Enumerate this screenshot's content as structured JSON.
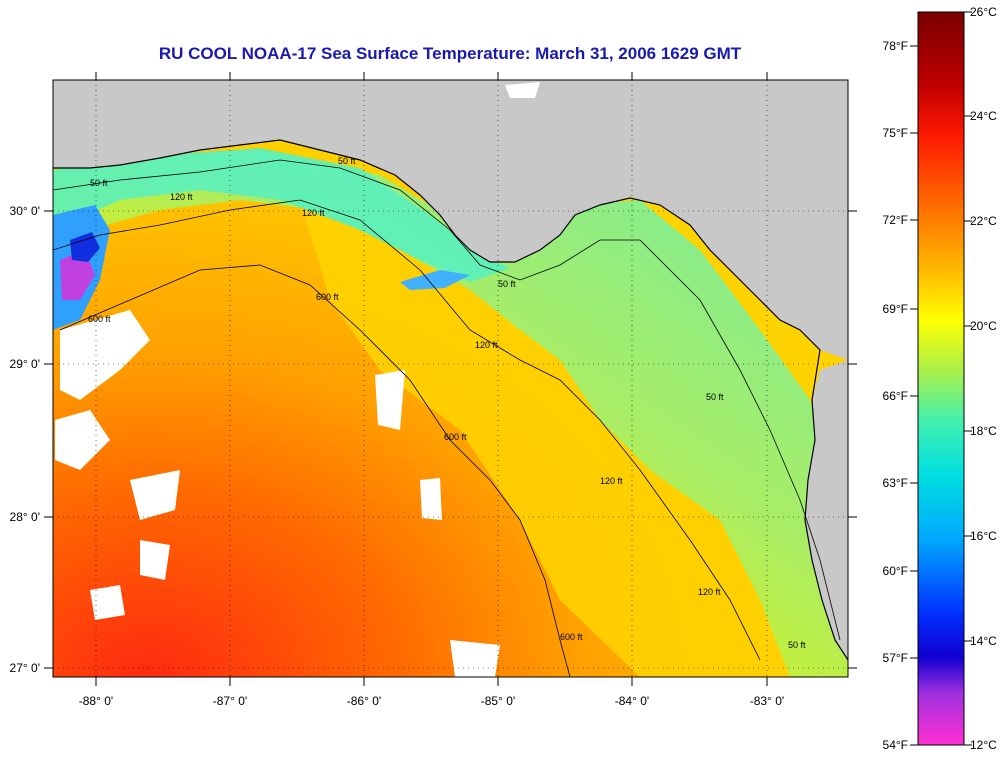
{
  "title": "RU COOL  NOAA-17  Sea Surface Temperature:  March 31, 2006 1629 GMT",
  "axes": {
    "lon_labels": [
      "-88° 0'",
      "-87° 0'",
      "-86° 0'",
      "-85° 0'",
      "-84° 0'",
      "-83° 0'"
    ],
    "lat_labels": [
      "30° 0'",
      "29° 0'",
      "28° 0'",
      "27° 0'"
    ]
  },
  "colorbar": {
    "fahrenheit_labels": [
      "78°F",
      "75°F",
      "72°F",
      "69°F",
      "66°F",
      "63°F",
      "60°F",
      "57°F",
      "54°F"
    ],
    "celsius_labels": [
      "26°C",
      "24°C",
      "22°C",
      "20°C",
      "18°C",
      "16°C",
      "14°C",
      "12°C"
    ],
    "colors": [
      "#7a0000",
      "#c00000",
      "#ff2a00",
      "#ff7a00",
      "#ffc000",
      "#ffff00",
      "#a8f04a",
      "#40f0b0",
      "#00e0e0",
      "#00a8ff",
      "#0040ff",
      "#1000d0",
      "#a030e0",
      "#ff30d0"
    ]
  },
  "contour_labels": [
    "50 ft",
    "120 ft",
    "600 ft",
    "50 ft",
    "120 ft",
    "600 ft",
    "120 ft",
    "50 ft",
    "600 ft",
    "120 ft",
    "50 ft",
    "120 ft",
    "600 ft",
    "50 ft"
  ],
  "legend_colors": {
    "land": "#c8c8c8",
    "cloud": "#ffffff",
    "coast": "#000000"
  }
}
